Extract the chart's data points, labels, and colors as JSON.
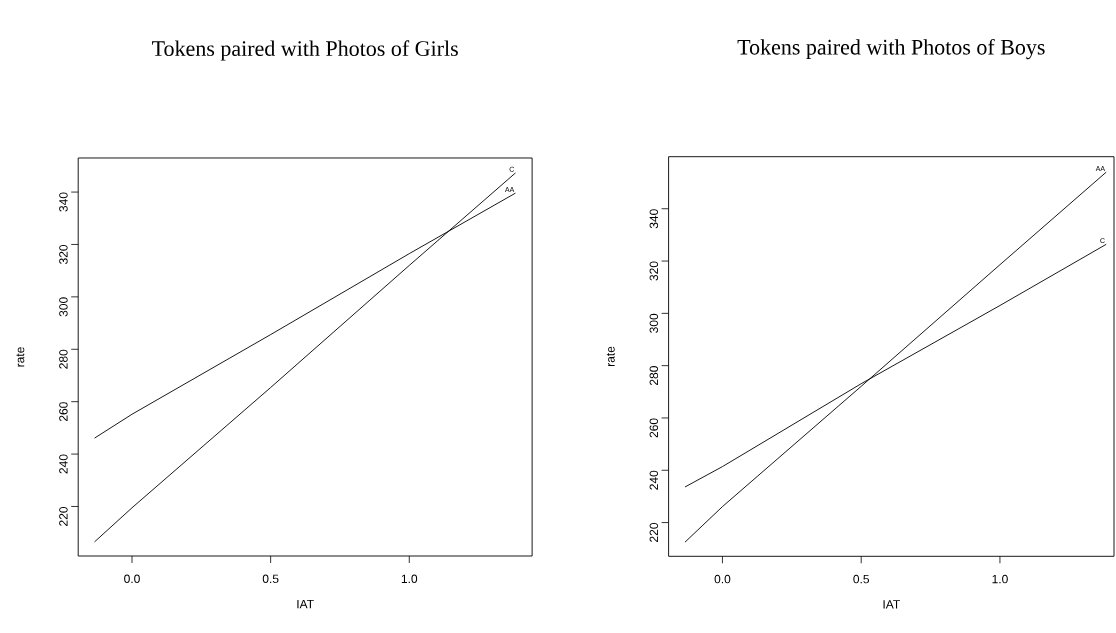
{
  "chart_data": [
    {
      "type": "line",
      "title": "Tokens paired with Photos of Girls",
      "xlabel": "IAT",
      "ylabel": "rate",
      "marker": "none",
      "xlim": [
        -0.194,
        1.443
      ],
      "ylim": [
        201.1,
        353
      ],
      "xticks": [
        {
          "value": 0,
          "label": "0.0"
        },
        {
          "value": 0.5,
          "label": "0.5"
        },
        {
          "value": 1,
          "label": "1.0"
        }
      ],
      "yticks": [
        220,
        240,
        260,
        280,
        300,
        320,
        340
      ],
      "series": [
        {
          "name": "C",
          "color": "#000000",
          "x": [
            -0.135,
            0,
            0.5,
            1,
            1.383
          ],
          "values": [
            206.5,
            219.5,
            265.4,
            312,
            347.3
          ]
        },
        {
          "name": "AA",
          "color": "#000000",
          "x": [
            -0.135,
            0,
            0.5,
            1,
            1.383
          ],
          "values": [
            246.1,
            255.2,
            285.6,
            316.5,
            339.6
          ]
        }
      ]
    },
    {
      "type": "line",
      "title": "Tokens paired with Photos of Boys",
      "xlabel": "IAT",
      "ylabel": "rate",
      "marker": "none",
      "xlim": [
        -0.194,
        1.411
      ],
      "ylim": [
        207.1,
        359.9
      ],
      "xticks": [
        {
          "value": 0,
          "label": "0.0"
        },
        {
          "value": 0.5,
          "label": "0.5"
        },
        {
          "value": 1,
          "label": "1.0"
        }
      ],
      "yticks": [
        220,
        240,
        260,
        280,
        300,
        320,
        340
      ],
      "series": [
        {
          "name": "AA",
          "color": "#000000",
          "x": [
            -0.135,
            0,
            0.5,
            1,
            1.383
          ],
          "values": [
            212.5,
            226.1,
            272.1,
            318.6,
            354.0
          ]
        },
        {
          "name": "C",
          "color": "#000000",
          "x": [
            -0.135,
            0,
            0.5,
            1,
            1.383
          ],
          "values": [
            233.6,
            241.4,
            273.1,
            303.0,
            326.4
          ]
        }
      ]
    }
  ]
}
